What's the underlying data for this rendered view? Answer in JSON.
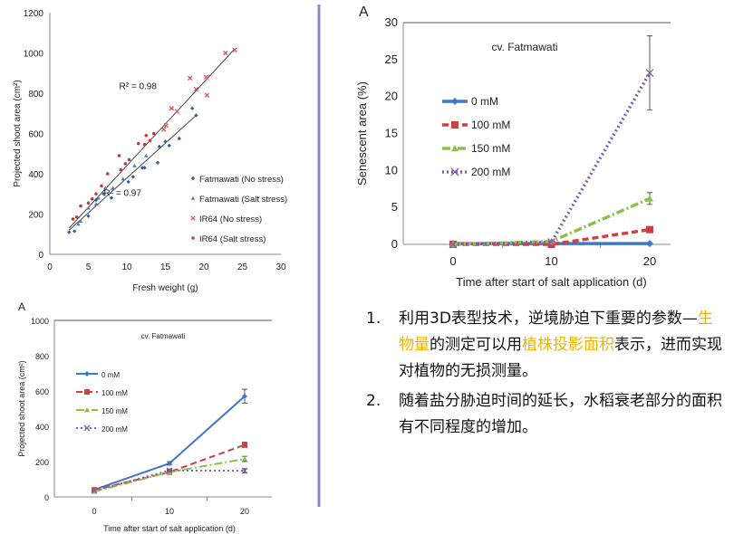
{
  "chart_data": [
    {
      "type": "scatter",
      "xlabel": "Fresh weight (g)",
      "ylabel": "Projected shoot area (cm²)",
      "xlim": [
        0,
        30
      ],
      "ylim": [
        0,
        1200
      ],
      "xticks": [
        0,
        5,
        10,
        15,
        20,
        25,
        30
      ],
      "yticks": [
        0,
        200,
        400,
        600,
        800,
        1000,
        1200
      ],
      "legend": "right",
      "annotations": [
        {
          "text": "R² = 0.98",
          "x": 9,
          "y": 820
        },
        {
          "text": "R² = 0.97",
          "x": 7,
          "y": 290
        }
      ],
      "trendlines": [
        {
          "from": [
            2.5,
            130
          ],
          "to": [
            24,
            1020
          ],
          "r2": 0.98
        },
        {
          "from": [
            2.5,
            120
          ],
          "to": [
            19,
            690
          ],
          "r2": 0.97
        }
      ],
      "series": [
        {
          "name": "Fatmawati (No stress)",
          "marker": "diamond",
          "color": "#2f5fa8",
          "points": [
            [
              2.5,
              110
            ],
            [
              3.2,
              115
            ],
            [
              5,
              190
            ],
            [
              6,
              270
            ],
            [
              7,
              300
            ],
            [
              8,
              280
            ],
            [
              10.2,
              360
            ],
            [
              10.8,
              385
            ],
            [
              12,
              430
            ],
            [
              12.3,
              430
            ],
            [
              14,
              455
            ],
            [
              14.2,
              535
            ],
            [
              15,
              560
            ],
            [
              15.5,
              540
            ],
            [
              16.8,
              575
            ],
            [
              18.5,
              725
            ],
            [
              19,
              690
            ]
          ]
        },
        {
          "name": "Fatmawati (Salt stress)",
          "marker": "triangle",
          "color": "#4a7cc4",
          "points": [
            [
              3.7,
              150
            ],
            [
              4,
              165
            ],
            [
              5,
              230
            ],
            [
              6,
              250
            ],
            [
              6.3,
              280
            ],
            [
              7.2,
              330
            ],
            [
              8.2,
              330
            ],
            [
              9.5,
              375
            ],
            [
              11,
              440
            ],
            [
              12.5,
              490
            ]
          ]
        },
        {
          "name": "IR64 (No stress)",
          "marker": "x",
          "color": "#e05050",
          "points": [
            [
              14.8,
              620
            ],
            [
              15.1,
              640
            ],
            [
              15.8,
              725
            ],
            [
              16.5,
              710
            ],
            [
              18.2,
              875
            ],
            [
              19,
              820
            ],
            [
              20.3,
              880
            ],
            [
              20.4,
              790
            ],
            [
              22.8,
              1000
            ],
            [
              24,
              1015
            ]
          ]
        },
        {
          "name": "IR64 (Salt stress)",
          "marker": "dot",
          "color": "#c03838",
          "points": [
            [
              3,
              175
            ],
            [
              3.5,
              185
            ],
            [
              4,
              240
            ],
            [
              5,
              255
            ],
            [
              5.5,
              275
            ],
            [
              6,
              300
            ],
            [
              6.7,
              340
            ],
            [
              7.5,
              400
            ],
            [
              9,
              490
            ],
            [
              9.2,
              420
            ],
            [
              9.8,
              450
            ],
            [
              10.3,
              470
            ],
            [
              11.5,
              550
            ],
            [
              12.3,
              545
            ],
            [
              12.5,
              590
            ],
            [
              13,
              565
            ],
            [
              13.5,
              600
            ]
          ]
        }
      ]
    },
    {
      "type": "line",
      "panel": "A",
      "title": "cv. Fatmawati",
      "xlabel": "Time after start of salt application (d)",
      "ylabel": "Projected shoot area (cm²)",
      "x": [
        0,
        10,
        20
      ],
      "ylim": [
        0,
        1000
      ],
      "yticks": [
        0,
        200,
        400,
        600,
        800,
        1000
      ],
      "legend": "left",
      "series": [
        {
          "name": "0 mM",
          "color": "#3f78c8",
          "values": [
            40,
            190,
            570
          ],
          "err": [
            0,
            10,
            40
          ]
        },
        {
          "name": "100 mM",
          "color": "#d04040",
          "values": [
            40,
            140,
            295
          ],
          "err": [
            0,
            10,
            15
          ]
        },
        {
          "name": "150 mM",
          "color": "#8cc04a",
          "values": [
            30,
            140,
            215
          ],
          "err": [
            0,
            10,
            15
          ]
        },
        {
          "name": "200 mM",
          "color": "#8060b0",
          "values": [
            35,
            150,
            148
          ],
          "err": [
            0,
            8,
            12
          ]
        }
      ]
    },
    {
      "type": "line",
      "panel": "A",
      "title": "cv. Fatmawati",
      "xlabel": "Time after start of salt application (d)",
      "ylabel": "Senescent area (%)",
      "x": [
        0,
        10,
        20
      ],
      "ylim": [
        0,
        30
      ],
      "yticks": [
        0,
        5,
        10,
        15,
        20,
        25,
        30
      ],
      "legend": "left",
      "series": [
        {
          "name": "0 mM",
          "color": "#3f78c8",
          "values": [
            0.1,
            0.1,
            0.1
          ],
          "err": [
            0,
            0,
            0
          ]
        },
        {
          "name": "100 mM",
          "color": "#d04040",
          "values": [
            0,
            0,
            2
          ],
          "err": [
            0,
            0,
            0.4
          ]
        },
        {
          "name": "150 mM",
          "color": "#8cc04a",
          "values": [
            0,
            0.4,
            6.2
          ],
          "err": [
            0,
            0,
            0.8
          ]
        },
        {
          "name": "200 mM",
          "color": "#8060b0",
          "values": [
            0,
            0.3,
            23.2
          ],
          "err": [
            0,
            0,
            5
          ]
        }
      ]
    }
  ],
  "divider_color": "#9b7fc8",
  "notes": {
    "item1": {
      "num": "1.",
      "a": "利用3D表型技术，逆境胁迫下重要的参数—",
      "h1": "生物量",
      "b": "的测定可以用",
      "h2": "植株投影面积",
      "c": "表示，进而实现对植物的无损测量。"
    },
    "item2": {
      "num": "2.",
      "text": "随着盐分胁迫时间的延长，水稻衰老部分的面积有不同程度的增加。"
    }
  }
}
